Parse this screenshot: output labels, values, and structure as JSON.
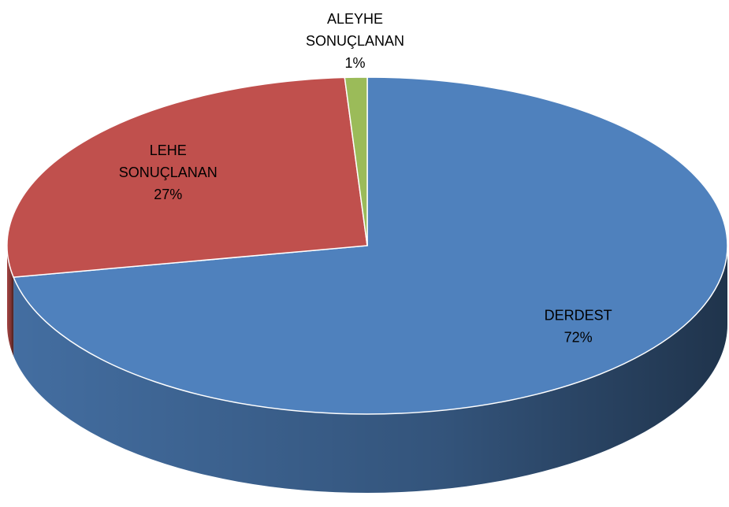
{
  "chart_data": {
    "type": "pie3d",
    "categories": [
      "DERDEST",
      "LEHE SONUÇLANAN",
      "ALEYHE SONUÇLANAN"
    ],
    "values": [
      72,
      27,
      1
    ],
    "value_labels": [
      "72%",
      "27%",
      "1%"
    ],
    "colors": [
      "#4f81bd",
      "#c0504d",
      "#9bbb59"
    ]
  }
}
